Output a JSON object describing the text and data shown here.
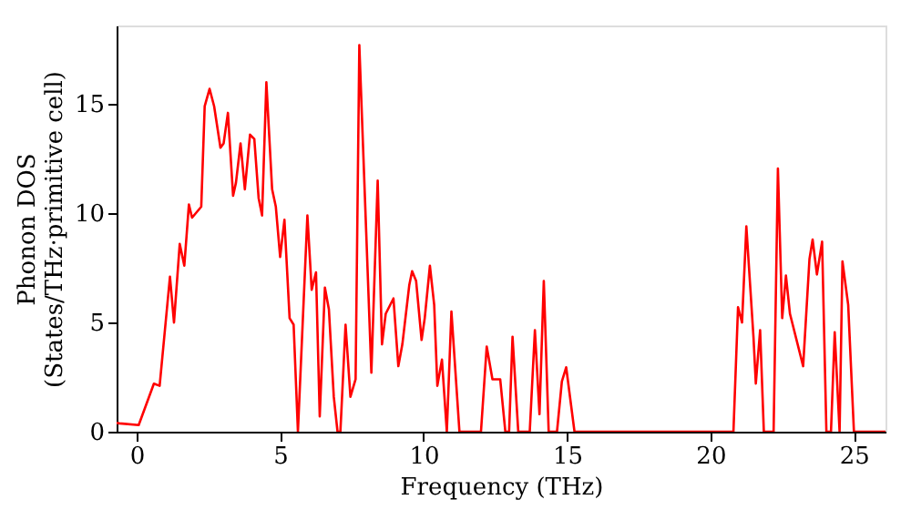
{
  "chart_data": {
    "type": "line",
    "xlabel": "Frequency (THz)",
    "ylabel": "Phonon DOS\n(States/THz·primitive cell)",
    "xlim": [
      -0.7,
      26.1
    ],
    "ylim": [
      0,
      18.6
    ],
    "xticks": [
      0,
      5,
      10,
      15,
      20,
      25
    ],
    "yticks": [
      0,
      5,
      10,
      15
    ],
    "grid": false,
    "legend": false,
    "marker": "none",
    "line_style": "solid",
    "series": [
      {
        "color": "#ff0000",
        "x": [
          -0.7,
          -0.6,
          0.07,
          0.6,
          0.8,
          1.16,
          1.3,
          1.5,
          1.66,
          1.82,
          1.93,
          2.25,
          2.37,
          2.54,
          2.7,
          2.92,
          3.03,
          3.18,
          3.36,
          3.46,
          3.62,
          3.77,
          3.95,
          4.1,
          4.25,
          4.37,
          4.52,
          4.72,
          4.85,
          5.0,
          5.15,
          5.33,
          5.47,
          5.62,
          5.95,
          6.1,
          6.25,
          6.38,
          6.56,
          6.7,
          6.87,
          7.0,
          7.1,
          7.28,
          7.45,
          7.63,
          7.76,
          8.18,
          8.4,
          8.55,
          8.68,
          8.95,
          9.12,
          9.26,
          9.5,
          9.6,
          9.74,
          9.93,
          10.04,
          10.22,
          10.37,
          10.48,
          10.64,
          10.81,
          10.97,
          11.25,
          12.0,
          12.2,
          12.4,
          12.67,
          12.85,
          12.98,
          13.1,
          13.3,
          13.7,
          13.88,
          14.04,
          14.19,
          14.36,
          14.65,
          14.82,
          14.97,
          15.26,
          20.8,
          20.96,
          21.1,
          21.25,
          21.5,
          21.58,
          21.73,
          21.86,
          22.2,
          22.35,
          22.5,
          22.63,
          22.77,
          23.23,
          23.45,
          23.56,
          23.71,
          23.89,
          24.04,
          24.2,
          24.33,
          24.5,
          24.6,
          24.8,
          25.0,
          26.1
        ],
        "values": [
          0.4,
          0.38,
          0.3,
          2.2,
          2.1,
          7.1,
          5.0,
          8.6,
          7.6,
          10.4,
          9.8,
          10.3,
          14.9,
          15.7,
          14.9,
          13.0,
          13.2,
          14.6,
          10.8,
          11.4,
          13.2,
          11.1,
          13.6,
          13.4,
          10.7,
          9.9,
          16.0,
          11.1,
          10.3,
          8.0,
          9.7,
          5.2,
          4.9,
          0,
          9.9,
          6.5,
          7.3,
          0.7,
          6.6,
          5.6,
          1.6,
          0,
          0,
          4.9,
          1.6,
          2.4,
          17.7,
          2.7,
          11.5,
          4.0,
          5.4,
          6.1,
          3.0,
          4.0,
          6.7,
          7.35,
          6.9,
          4.2,
          5.2,
          7.6,
          5.8,
          2.1,
          3.3,
          0,
          5.5,
          0,
          0,
          3.9,
          2.4,
          2.4,
          0,
          0,
          4.35,
          0,
          0,
          4.65,
          0.8,
          6.9,
          0,
          0,
          2.3,
          2.95,
          0,
          0,
          5.7,
          5.0,
          9.4,
          4.3,
          2.2,
          4.65,
          0,
          0,
          12.05,
          5.2,
          7.15,
          5.4,
          3.0,
          7.9,
          8.8,
          7.2,
          8.7,
          0,
          0,
          4.55,
          0,
          7.8,
          5.8,
          0,
          0
        ]
      }
    ]
  }
}
